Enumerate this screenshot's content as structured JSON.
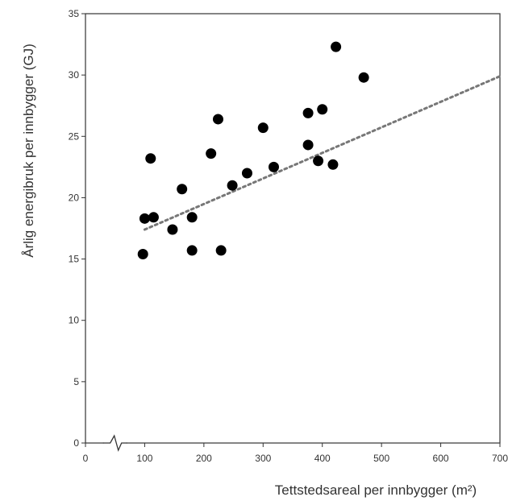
{
  "chart_data": {
    "type": "scatter",
    "xlabel": "Tettstedsareal per innbygger (m²)",
    "ylabel": "Årlig energibruk per innbygger (GJ)",
    "xlim": [
      0,
      700
    ],
    "ylim": [
      0,
      35
    ],
    "xticks": [
      0,
      100,
      200,
      300,
      400,
      500,
      600,
      700
    ],
    "yticks": [
      0,
      5,
      10,
      15,
      20,
      25,
      30,
      35
    ],
    "grid": false,
    "x_axis_break": true,
    "trendline": {
      "style": "dotted",
      "x": [
        100,
        700
      ],
      "y": [
        17.4,
        29.9
      ]
    },
    "colors": {
      "points": "#000000",
      "trendline": "#777777",
      "axes": "#333333"
    },
    "points": [
      {
        "x": 97,
        "y": 15.4
      },
      {
        "x": 100,
        "y": 18.3
      },
      {
        "x": 110,
        "y": 23.2
      },
      {
        "x": 115,
        "y": 18.4
      },
      {
        "x": 147,
        "y": 17.4
      },
      {
        "x": 163,
        "y": 20.7
      },
      {
        "x": 180,
        "y": 18.4
      },
      {
        "x": 180,
        "y": 15.7
      },
      {
        "x": 212,
        "y": 23.6
      },
      {
        "x": 224,
        "y": 26.4
      },
      {
        "x": 229,
        "y": 15.7
      },
      {
        "x": 248,
        "y": 21.0
      },
      {
        "x": 273,
        "y": 22.0
      },
      {
        "x": 300,
        "y": 25.7
      },
      {
        "x": 318,
        "y": 22.5
      },
      {
        "x": 376,
        "y": 26.9
      },
      {
        "x": 376,
        "y": 24.3
      },
      {
        "x": 393,
        "y": 23.0
      },
      {
        "x": 400,
        "y": 27.2
      },
      {
        "x": 418,
        "y": 22.7
      },
      {
        "x": 423,
        "y": 32.3
      },
      {
        "x": 470,
        "y": 29.8
      }
    ]
  }
}
